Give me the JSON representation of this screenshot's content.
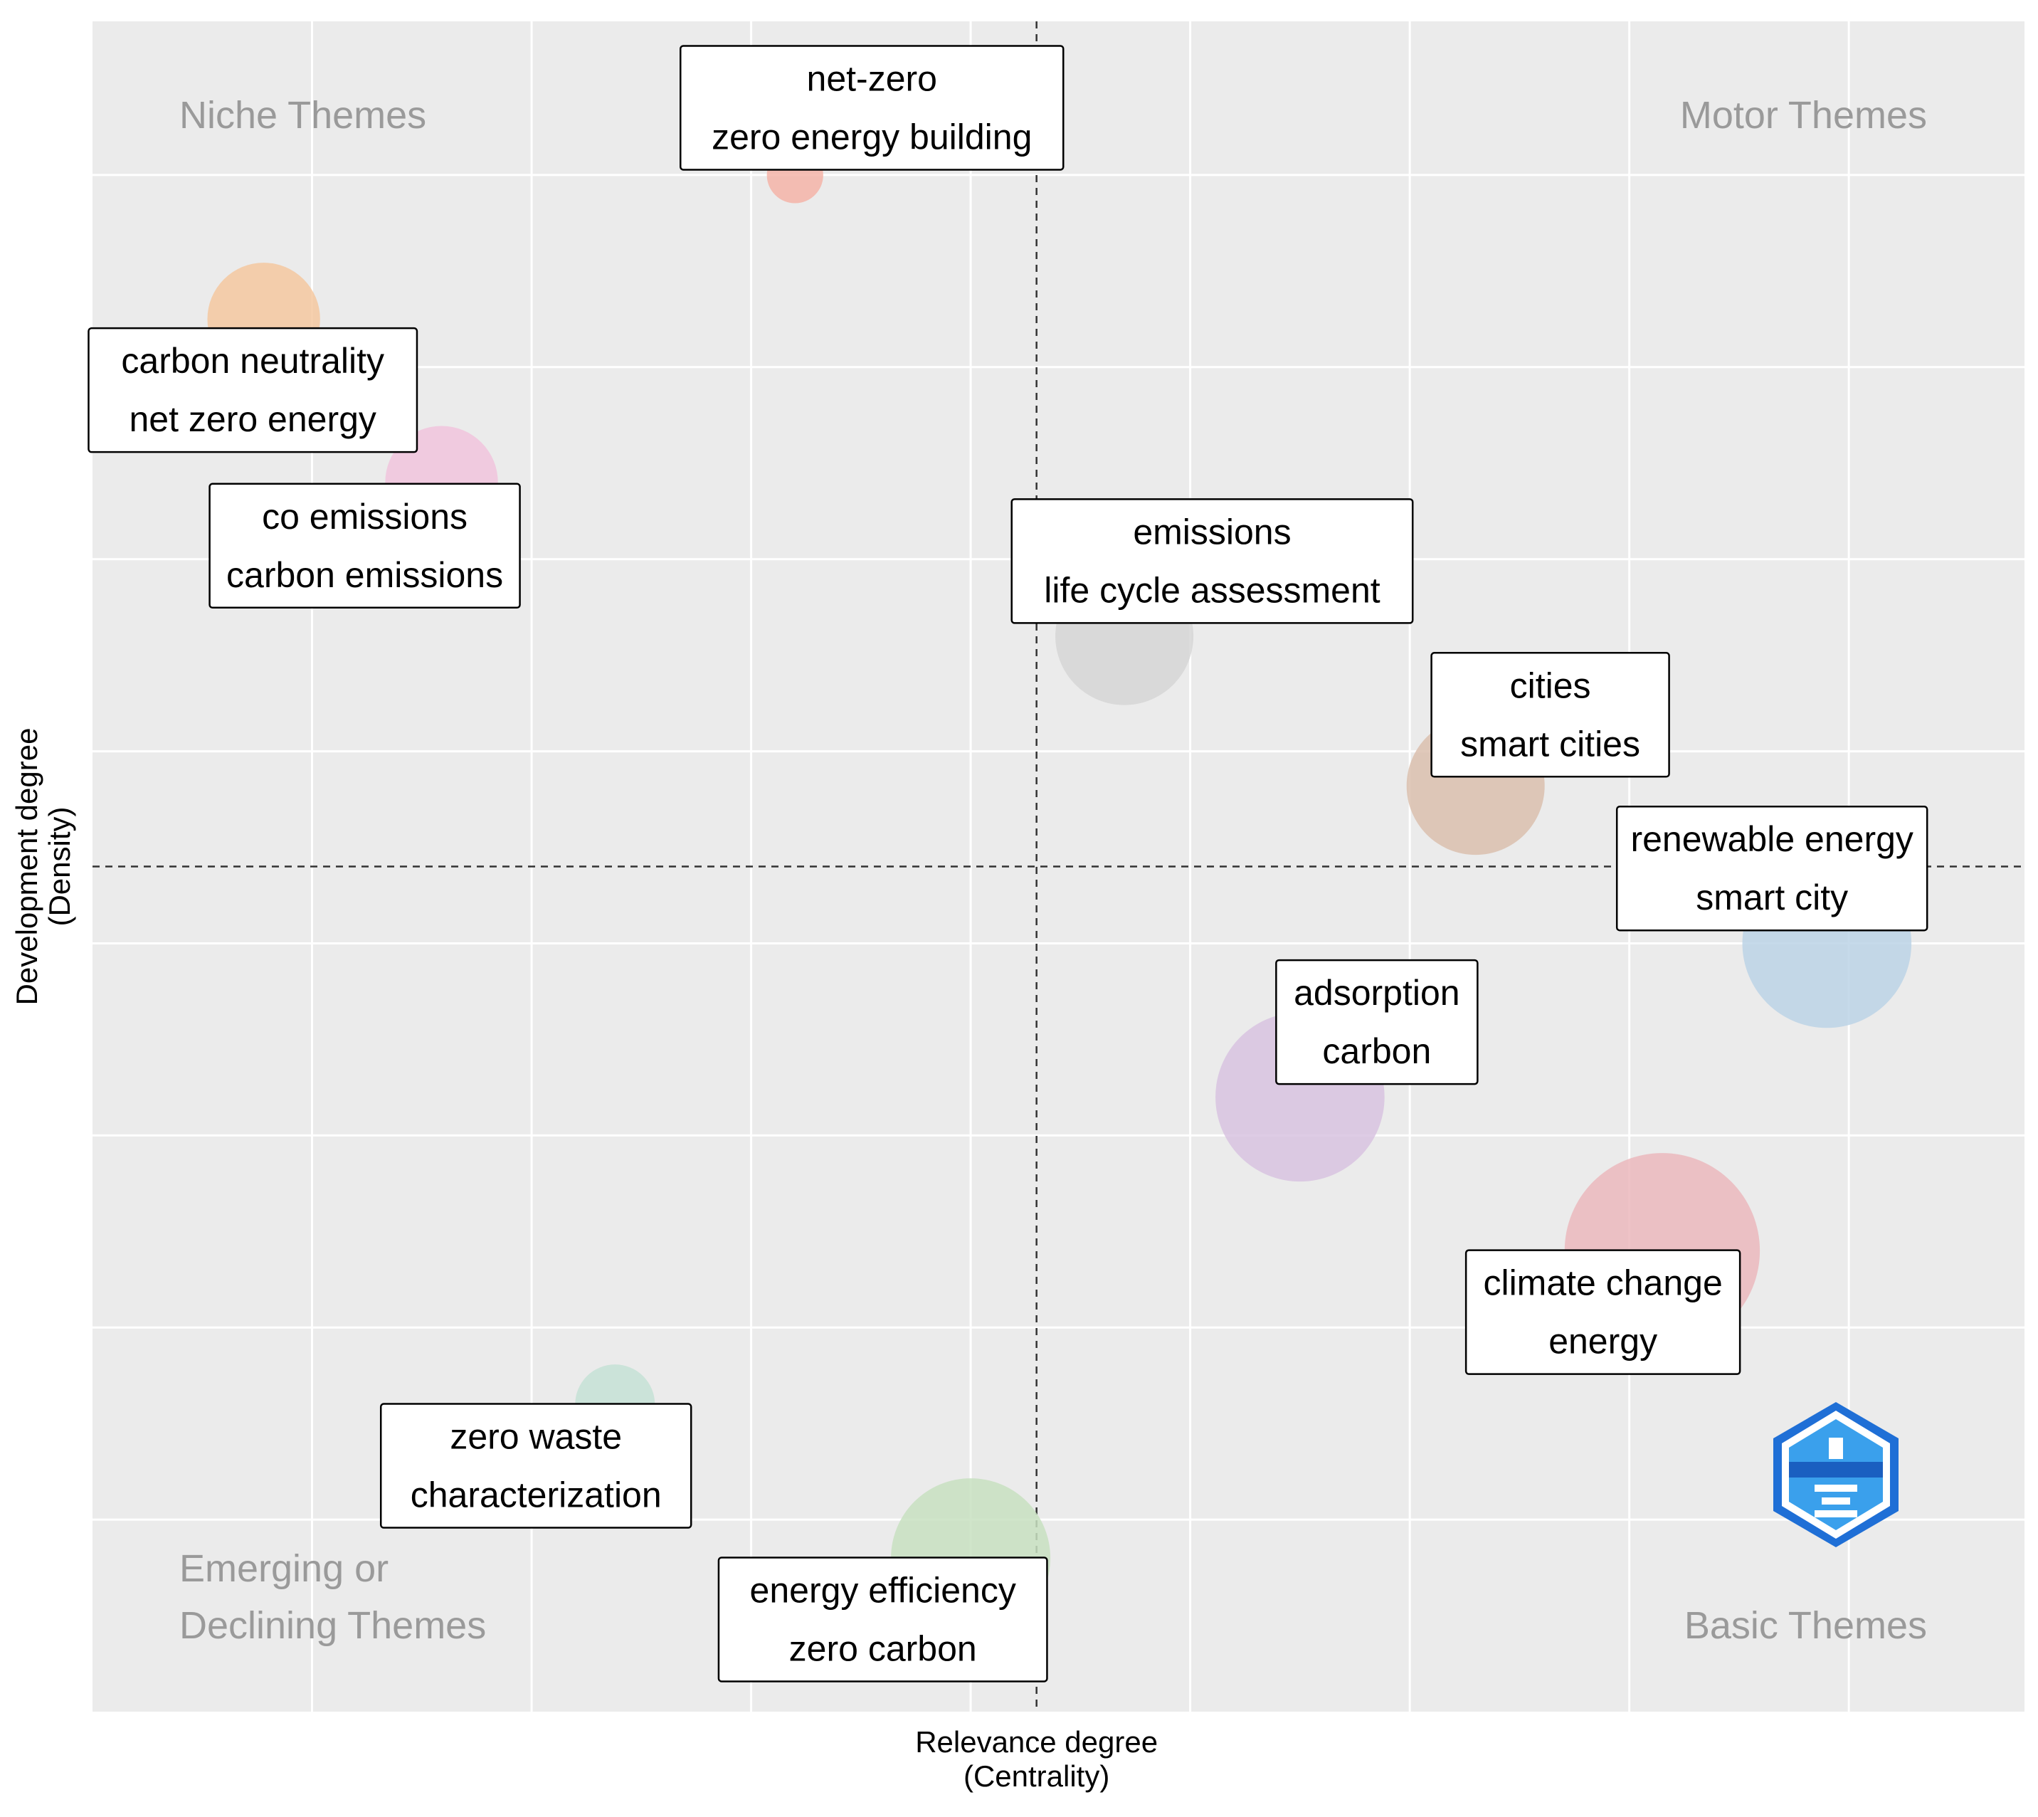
{
  "chart_data": {
    "type": "scatter",
    "xlabel_lines": [
      "Relevance degree",
      "(Centrality)"
    ],
    "ylabel_lines": [
      "Development degree",
      "(Density)"
    ],
    "xlim": [
      0,
      8.8
    ],
    "ylim": [
      0,
      8.8
    ],
    "x_gridlines": [
      1,
      2,
      3,
      4,
      5,
      6,
      7,
      8
    ],
    "y_gridlines": [
      1,
      2,
      3,
      4,
      5,
      6,
      7,
      8
    ],
    "median_x": 4.3,
    "median_y": 4.4,
    "grid": true,
    "legend": "none",
    "quadrants": {
      "top_left": [
        "Niche Themes"
      ],
      "top_right": [
        "Motor Themes"
      ],
      "bottom_left": [
        "Emerging or",
        "Declining Themes"
      ],
      "bottom_right": [
        "Basic Themes"
      ]
    },
    "points": [
      {
        "labels": [
          "net-zero",
          "zero energy building"
        ],
        "x": 3.2,
        "y": 8.0,
        "size": 1,
        "color": "#f4b4a8",
        "label_x": 3.55,
        "label_y": 8.35
      },
      {
        "labels": [
          "carbon neutrality",
          "net zero energy"
        ],
        "x": 0.78,
        "y": 7.25,
        "size": 4,
        "color": "#f5c8a0",
        "label_x": 0.73,
        "label_y": 6.88
      },
      {
        "labels": [
          "co emissions",
          "carbon emissions"
        ],
        "x": 1.59,
        "y": 6.4,
        "size": 4,
        "color": "#f1c4dd",
        "label_x": 1.24,
        "label_y": 6.07
      },
      {
        "labels": [
          "emissions",
          "life cycle assessment"
        ],
        "x": 4.7,
        "y": 5.6,
        "size": 6,
        "color": "#d6d6d6",
        "label_x": 5.1,
        "label_y": 5.99
      },
      {
        "labels": [
          "cities",
          "smart cities"
        ],
        "x": 6.3,
        "y": 4.82,
        "size": 6,
        "color": "#dbbfae",
        "label_x": 6.64,
        "label_y": 5.19
      },
      {
        "labels": [
          "renewable energy",
          "smart city"
        ],
        "x": 7.9,
        "y": 4.0,
        "size": 9,
        "color": "#bcd3e6",
        "label_x": 7.65,
        "label_y": 4.39
      },
      {
        "labels": [
          "adsorption",
          "carbon"
        ],
        "x": 5.5,
        "y": 3.2,
        "size": 9,
        "color": "#d8c3e0",
        "label_x": 5.85,
        "label_y": 3.59
      },
      {
        "labels": [
          "climate change",
          "energy"
        ],
        "x": 7.15,
        "y": 2.4,
        "size": 12,
        "color": "#ebb8bd",
        "label_x": 6.88,
        "label_y": 2.08
      },
      {
        "labels": [
          "zero waste",
          "characterization"
        ],
        "x": 2.38,
        "y": 1.6,
        "size": 2,
        "color": "#c5e2d6",
        "label_x": 2.02,
        "label_y": 1.28
      },
      {
        "labels": [
          "energy efficiency",
          "zero carbon"
        ],
        "x": 4.0,
        "y": 0.8,
        "size": 8,
        "color": "#c8e1c1",
        "label_x": 3.6,
        "label_y": 0.48
      }
    ]
  },
  "logo": {
    "name": "bibliometrix-logo",
    "color": "#2f8fe0"
  }
}
